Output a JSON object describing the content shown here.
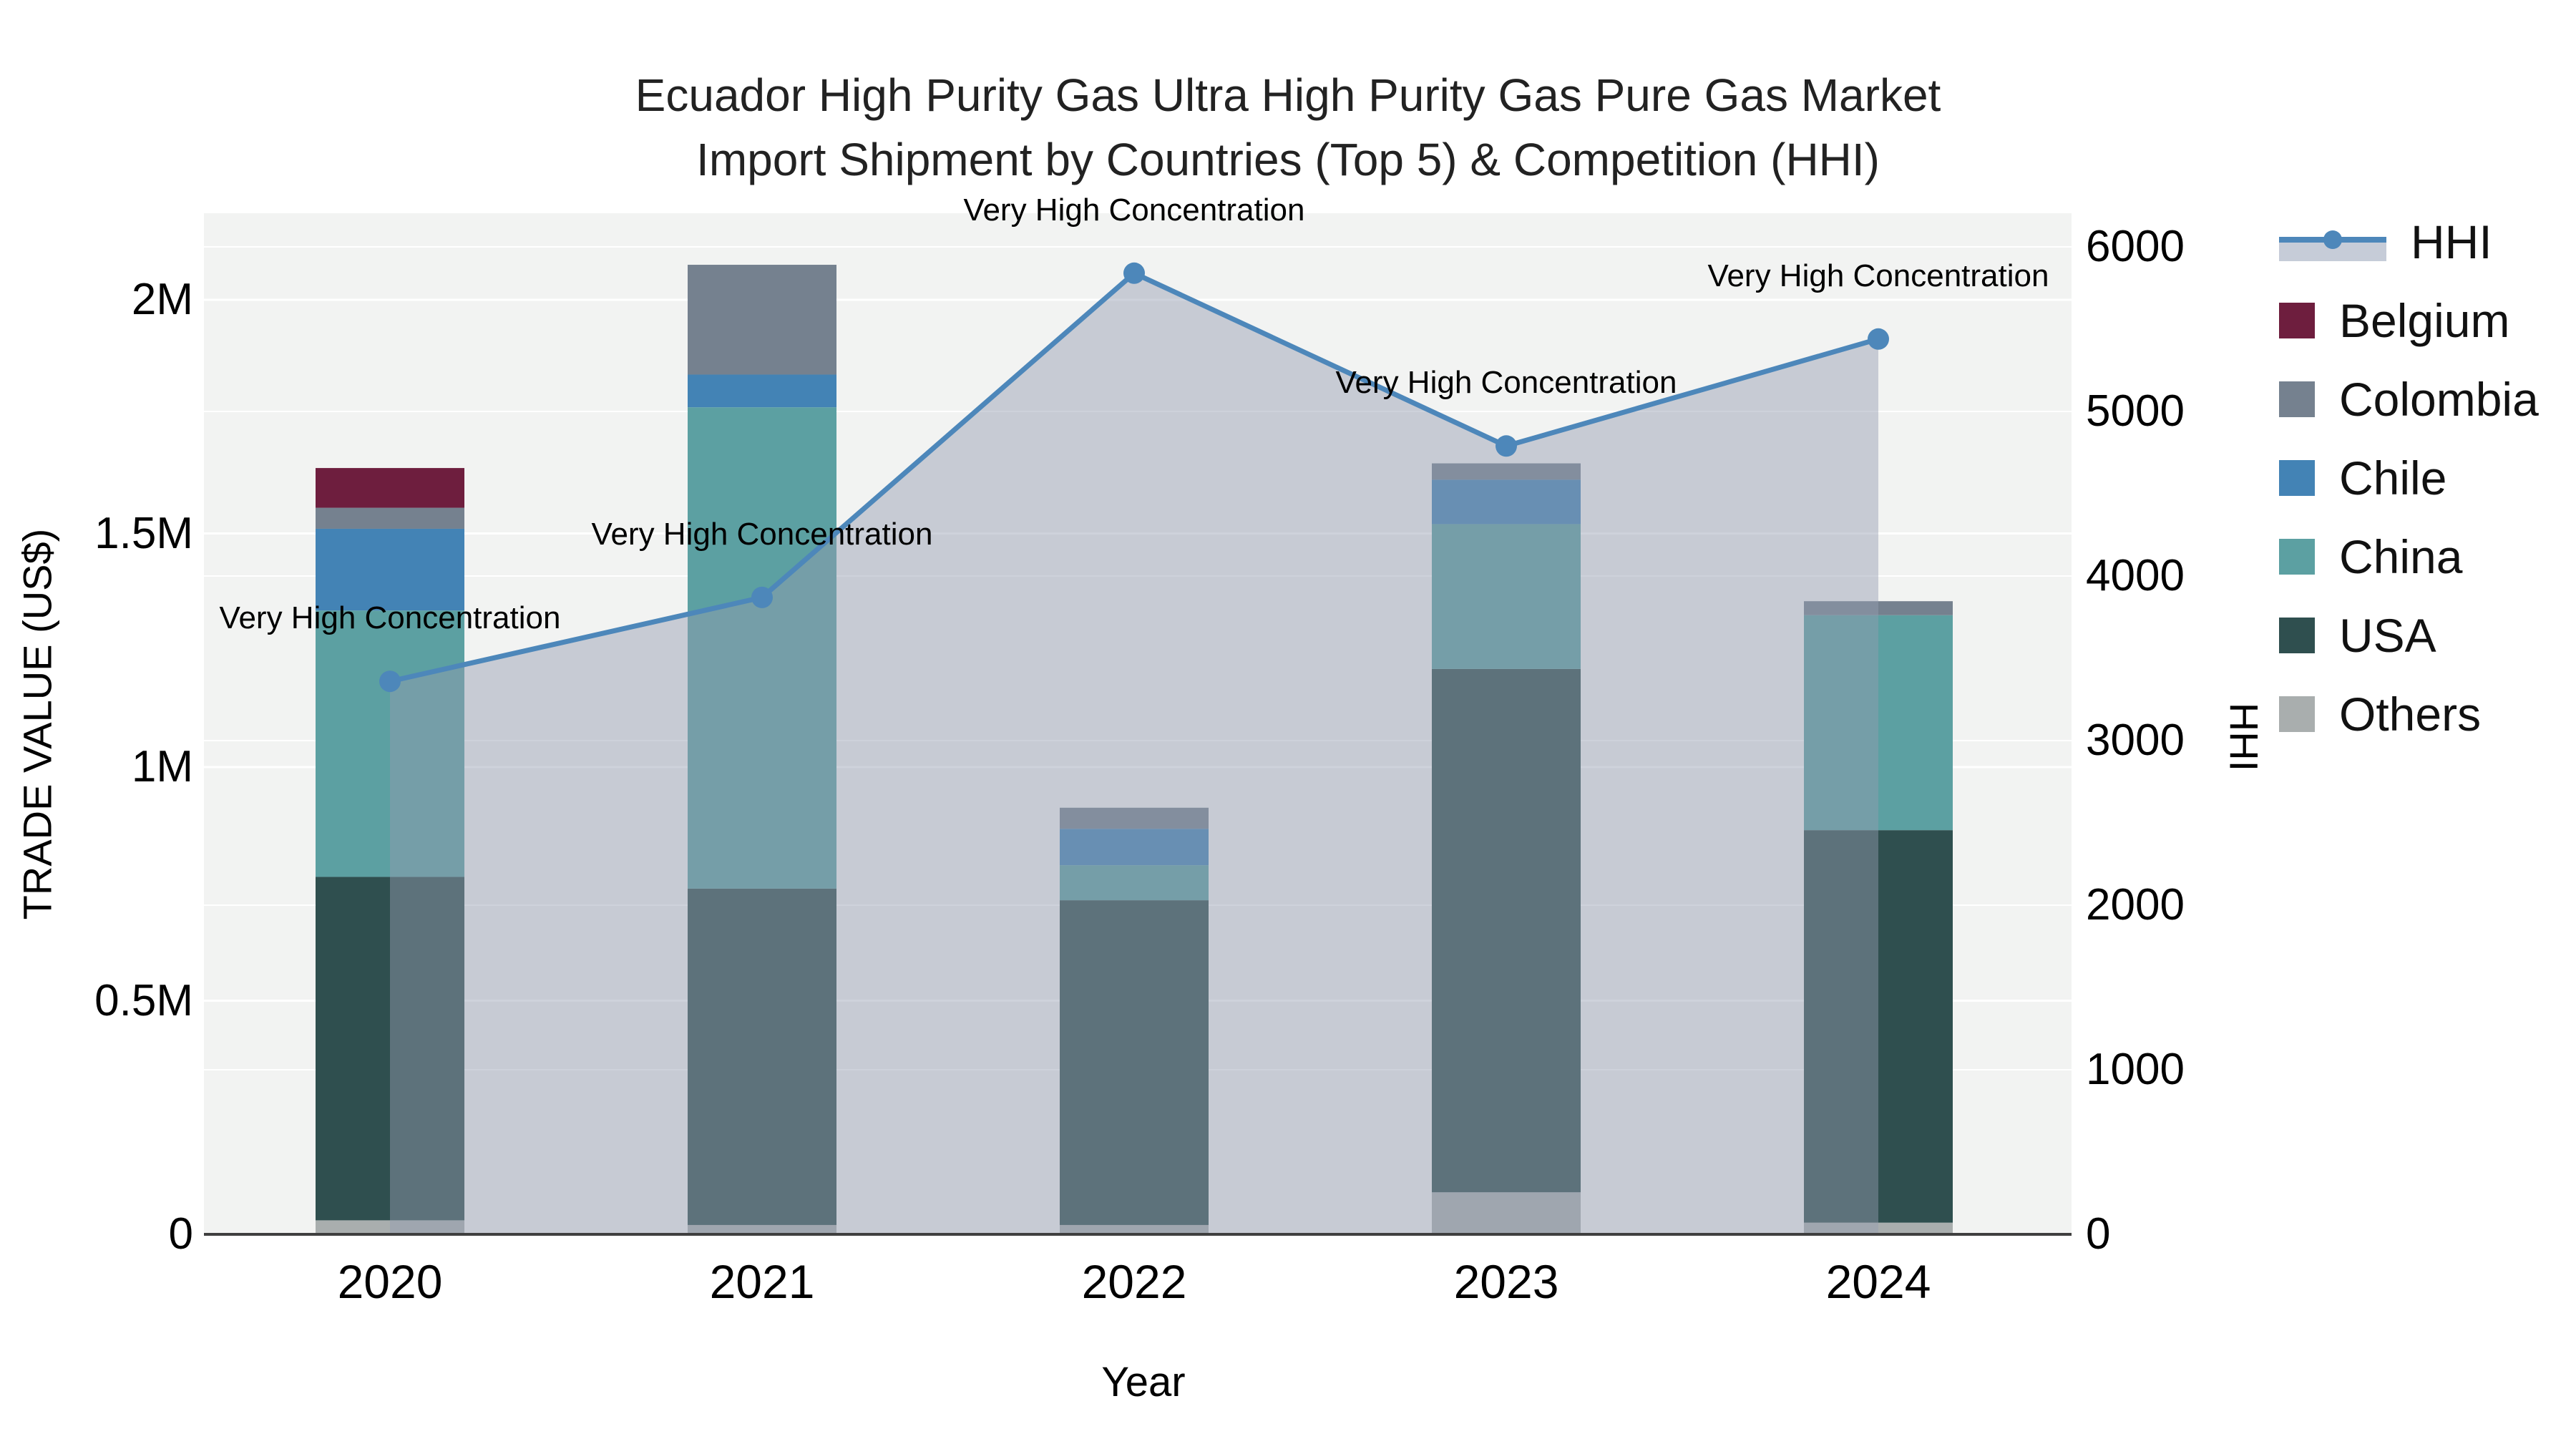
{
  "title": {
    "line1": "Ecuador High Purity Gas Ultra High Purity Gas Pure Gas Market",
    "line2": "Import Shipment by Countries (Top 5) & Competition (HHI)"
  },
  "axes": {
    "x": {
      "title": "Year",
      "categories": [
        "2020",
        "2021",
        "2022",
        "2023",
        "2024"
      ]
    },
    "y_left": {
      "title": "TRADE VALUE (US$)",
      "tick_labels": [
        "0",
        "0.5M",
        "1M",
        "1.5M",
        "2M"
      ],
      "tick_values": [
        0,
        500000,
        1000000,
        1500000,
        2000000
      ]
    },
    "y_right": {
      "title": "HHI",
      "tick_labels": [
        "0",
        "1000",
        "2000",
        "3000",
        "4000",
        "5000",
        "6000"
      ],
      "tick_values": [
        0,
        1000,
        2000,
        3000,
        4000,
        5000,
        6000
      ]
    }
  },
  "legend": {
    "items": [
      {
        "label": "HHI",
        "type": "line",
        "color": "#4d87ba"
      },
      {
        "label": "Belgium",
        "type": "bar",
        "color": "#6e1e3e"
      },
      {
        "label": "Colombia",
        "type": "bar",
        "color": "#75818f"
      },
      {
        "label": "Chile",
        "type": "bar",
        "color": "#4383b5"
      },
      {
        "label": "China",
        "type": "bar",
        "color": "#5ca0a2"
      },
      {
        "label": "USA",
        "type": "bar",
        "color": "#2f4f4f"
      },
      {
        "label": "Others",
        "type": "bar",
        "color": "#a9aeae"
      }
    ]
  },
  "chart_data": {
    "type": "combo-stacked-bar-line",
    "x": [
      "2020",
      "2021",
      "2022",
      "2023",
      "2024"
    ],
    "bar_unit": "US$",
    "bar_series": [
      {
        "name": "Belgium",
        "color": "#6e1e3e",
        "values": [
          85000,
          0,
          0,
          0,
          0
        ]
      },
      {
        "name": "Colombia",
        "color": "#75818f",
        "values": [
          45000,
          235000,
          45000,
          35000,
          30000
        ]
      },
      {
        "name": "Chile",
        "color": "#4383b5",
        "values": [
          175000,
          70000,
          78000,
          95000,
          0
        ]
      },
      {
        "name": "China",
        "color": "#5ca0a2",
        "values": [
          570000,
          1030000,
          75000,
          310000,
          460000
        ]
      },
      {
        "name": "USA",
        "color": "#2f4f4f",
        "values": [
          735000,
          720000,
          695000,
          1120000,
          840000
        ]
      },
      {
        "name": "Others",
        "color": "#a9aeae",
        "values": [
          30000,
          20000,
          20000,
          90000,
          25000
        ]
      }
    ],
    "stack_order_bottom_to_top": [
      "Others",
      "USA",
      "China",
      "Chile",
      "Colombia",
      "Belgium"
    ],
    "line_series": {
      "name": "HHI",
      "axis": "right",
      "color": "#4d87ba",
      "area_fill": "rgba(148,158,176,0.46)",
      "values": [
        3360,
        3870,
        5840,
        4790,
        5440
      ]
    },
    "annotations": [
      "Very High Concentration",
      "Very High Concentration",
      "Very High Concentration",
      "Very High Concentration",
      "Very High Concentration"
    ],
    "layout_hints": {
      "plot_bg": "#f2f3f2",
      "grid_color": "#ffffff",
      "y_left_range": [
        0,
        2185000
      ],
      "y_right_range": [
        0,
        6000
      ],
      "legend_position": "right"
    }
  }
}
